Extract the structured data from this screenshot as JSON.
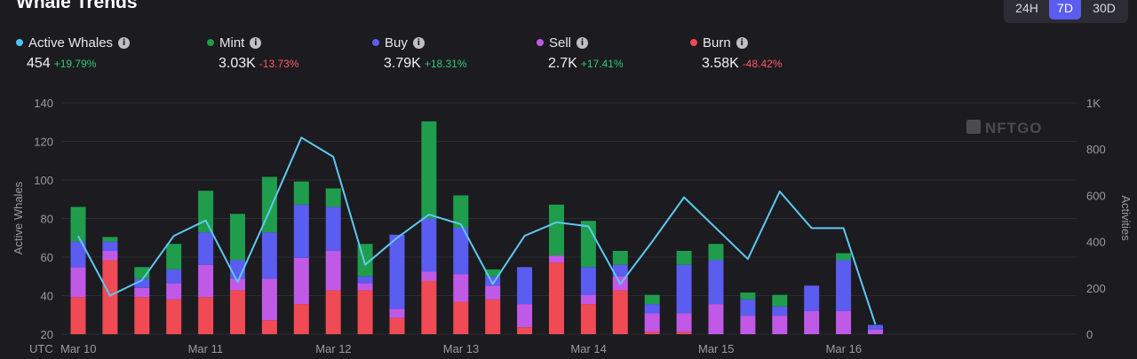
{
  "title": "Whale Trends",
  "range_buttons": [
    {
      "label": "24H",
      "active": false
    },
    {
      "label": "7D",
      "active": true
    },
    {
      "label": "30D",
      "active": false
    }
  ],
  "metrics": [
    {
      "label": "Active Whales",
      "value": "454",
      "change": "+19.79%",
      "color": "#4fc3f7",
      "trend": "up"
    },
    {
      "label": "Mint",
      "value": "3.03K",
      "change": "-13.73%",
      "color": "#1f9d4c",
      "trend": "down"
    },
    {
      "label": "Buy",
      "value": "3.79K",
      "change": "+18.31%",
      "color": "#5b5cf0",
      "trend": "up"
    },
    {
      "label": "Sell",
      "value": "2.7K",
      "change": "+17.41%",
      "color": "#c05ae6",
      "trend": "up"
    },
    {
      "label": "Burn",
      "value": "3.58K",
      "change": "-48.42%",
      "color": "#f04a55",
      "trend": "down"
    }
  ],
  "watermark": "NFTGO",
  "chart_data": {
    "type": "bar",
    "timezone_label": "UTC",
    "x_tick_labels": [
      "Mar 10",
      "Mar 11",
      "Mar 12",
      "Mar 13",
      "Mar 14",
      "Mar 15",
      "Mar 16"
    ],
    "left_axis": {
      "label": "Active Whales",
      "ticks": [
        "20",
        "40",
        "60",
        "80",
        "100",
        "120",
        "140"
      ],
      "range": [
        20,
        140
      ]
    },
    "right_axis": {
      "label": "Activities",
      "ticks": [
        "0",
        "200",
        "400",
        "600",
        "800",
        "1K"
      ],
      "range": [
        0,
        1000
      ]
    },
    "series": [
      {
        "name": "Burn",
        "color": "#f04a55",
        "values": [
          160,
          320,
          160,
          150,
          160,
          190,
          60,
          130,
          190,
          190,
          70,
          230,
          140,
          150,
          30,
          310,
          130,
          190,
          10,
          10,
          0,
          0,
          0,
          0,
          0,
          0
        ]
      },
      {
        "name": "Sell",
        "color": "#c05ae6",
        "values": [
          130,
          40,
          40,
          70,
          140,
          50,
          180,
          200,
          170,
          30,
          40,
          40,
          120,
          60,
          100,
          30,
          40,
          60,
          80,
          80,
          130,
          80,
          80,
          100,
          100,
          20
        ]
      },
      {
        "name": "Buy",
        "color": "#5b5cf0",
        "values": [
          110,
          40,
          40,
          60,
          140,
          80,
          200,
          230,
          190,
          30,
          320,
          230,
          200,
          40,
          160,
          0,
          120,
          50,
          40,
          210,
          190,
          70,
          40,
          110,
          220,
          20
        ]
      },
      {
        "name": "Mint",
        "color": "#1f9d4c",
        "values": [
          150,
          20,
          50,
          110,
          180,
          200,
          240,
          100,
          80,
          140,
          0,
          420,
          140,
          30,
          0,
          220,
          200,
          60,
          40,
          60,
          70,
          30,
          50,
          0,
          30,
          0
        ]
      }
    ],
    "line": {
      "name": "Active Whales",
      "color": "#5ec8ef",
      "values": [
        71,
        40,
        48,
        71,
        79,
        47,
        84,
        122,
        112,
        56,
        70,
        82,
        77,
        46,
        71,
        78,
        76,
        46,
        68,
        91,
        75,
        59,
        94,
        75,
        75,
        25
      ]
    }
  }
}
